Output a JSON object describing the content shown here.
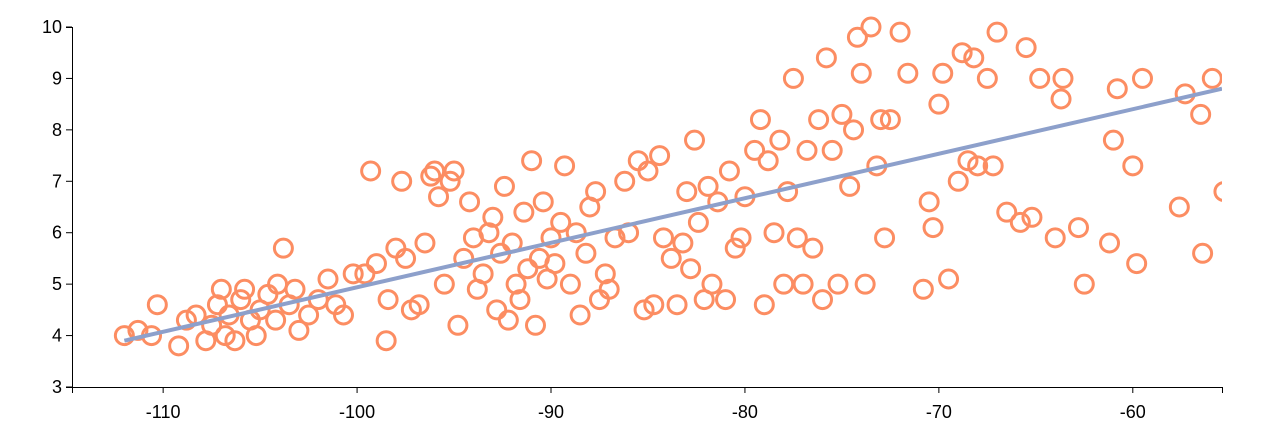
{
  "chart_data": {
    "type": "scatter",
    "xlim": [
      -114.7,
      -55.4
    ],
    "ylim": [
      3,
      10
    ],
    "xticks": [
      -110,
      -100,
      -90,
      -80,
      -70,
      -60
    ],
    "yticks": [
      3,
      4,
      5,
      6,
      7,
      8,
      9,
      10
    ],
    "series": [
      {
        "type": "scatter",
        "color": "#fc8d62",
        "x": [
          -112,
          -111.3,
          -110.6,
          -110.3,
          -109.2,
          -108.8,
          -108.3,
          -107.8,
          -107.5,
          -107.2,
          -107,
          -106.8,
          -106.6,
          -106.3,
          -106,
          -105.8,
          -105.5,
          -105.2,
          -105,
          -104.6,
          -104.2,
          -104.1,
          -103.8,
          -103.5,
          -103.2,
          -103,
          -102.5,
          -102,
          -101.5,
          -101.1,
          -100.7,
          -100.2,
          -99.6,
          -99.3,
          -99.0,
          -98.5,
          -98.4,
          -98.0,
          -97.7,
          -97.5,
          -97.2,
          -96.8,
          -96.5,
          -96.2,
          -96,
          -95.8,
          -95.5,
          -95.2,
          -95,
          -94.8,
          -94.5,
          -94.2,
          -94,
          -93.8,
          -93.5,
          -93.2,
          -93,
          -92.8,
          -92.6,
          -92.4,
          -92.2,
          -92,
          -91.8,
          -91.6,
          -91.4,
          -91.2,
          -91,
          -90.8,
          -90.6,
          -90.4,
          -90.2,
          -90,
          -89.8,
          -89.5,
          -89.3,
          -89.0,
          -88.7,
          -88.5,
          -88.2,
          -88,
          -87.7,
          -87.5,
          -87.2,
          -87,
          -86.7,
          -86.2,
          -86,
          -85.5,
          -85.2,
          -85,
          -84.7,
          -84.4,
          -84.2,
          -83.8,
          -83.5,
          -83.2,
          -83,
          -82.8,
          -82.6,
          -82.4,
          -82.1,
          -81.9,
          -81.7,
          -81.4,
          -81.0,
          -80.8,
          -80.5,
          -80.2,
          -80,
          -79.5,
          -79.2,
          -79,
          -78.8,
          -78.5,
          -78.2,
          -78,
          -77.8,
          -77.5,
          -77.3,
          -77,
          -76.8,
          -76.5,
          -76.2,
          -76,
          -75.8,
          -75.5,
          -75.2,
          -75,
          -74.6,
          -74.4,
          -74.2,
          -74,
          -73.8,
          -73.5,
          -73.2,
          -73,
          -72.8,
          -72.5,
          -72,
          -71.6,
          -70.8,
          -70.5,
          -70.3,
          -70,
          -69.8,
          -69.5,
          -69,
          -68.8,
          -68.5,
          -68.2,
          -68,
          -67.5,
          -67.2,
          -67,
          -66.5,
          -65.8,
          -65.5,
          -65.2,
          -64.8,
          -64,
          -63.7,
          -63.6,
          -62.8,
          -62.5,
          -61.2,
          -61,
          -60.8,
          -60,
          -59.8,
          -59.5,
          -57.6,
          -57.3,
          -56.5,
          -56.4,
          -55.9,
          -55.3
        ],
        "values": [
          4.0,
          4.1,
          4.0,
          4.6,
          3.8,
          4.3,
          4.4,
          3.9,
          4.2,
          4.6,
          4.9,
          4.0,
          4.4,
          3.9,
          4.7,
          4.9,
          4.3,
          4.0,
          4.5,
          4.8,
          4.3,
          5.0,
          5.7,
          4.6,
          4.9,
          4.1,
          4.4,
          4.7,
          5.1,
          4.6,
          4.4,
          5.2,
          5.2,
          7.2,
          5.4,
          3.9,
          4.7,
          5.7,
          7.0,
          5.5,
          4.5,
          4.6,
          5.8,
          7.1,
          7.2,
          6.7,
          5.0,
          7.0,
          7.2,
          4.2,
          5.5,
          6.6,
          5.9,
          4.9,
          5.2,
          6.0,
          6.3,
          4.5,
          5.6,
          6.9,
          4.3,
          5.8,
          5.0,
          4.7,
          6.4,
          5.3,
          7.4,
          4.2,
          5.5,
          6.6,
          5.1,
          5.9,
          5.4,
          6.2,
          7.3,
          5.0,
          6.0,
          4.4,
          5.6,
          6.5,
          6.8,
          4.7,
          5.2,
          4.9,
          5.9,
          7.0,
          6.0,
          7.4,
          4.5,
          7.2,
          4.6,
          7.5,
          5.9,
          5.5,
          4.6,
          5.8,
          6.8,
          5.3,
          7.8,
          6.2,
          4.7,
          6.9,
          5.0,
          6.6,
          4.7,
          7.2,
          5.7,
          5.9,
          6.7,
          7.6,
          8.2,
          4.6,
          7.4,
          6.0,
          7.8,
          5.0,
          6.8,
          9.0,
          5.9,
          5.0,
          7.6,
          5.7,
          8.2,
          4.7,
          9.4,
          7.6,
          5.0,
          8.3,
          6.9,
          8.0,
          9.8,
          9.1,
          5.0,
          10.0,
          7.3,
          8.2,
          5.9,
          8.2,
          9.9,
          9.1,
          4.9,
          6.6,
          6.1,
          8.5,
          9.1,
          5.1,
          7.0,
          9.5,
          7.4,
          9.4,
          7.3,
          9.0,
          7.3,
          9.9,
          6.4,
          6.2,
          9.6,
          6.3,
          9.0,
          5.9,
          8.6,
          9.0,
          6.1,
          5.0,
          5.8,
          7.8,
          8.8,
          7.3,
          5.4,
          9.0,
          6.5,
          8.7,
          8.3,
          5.6,
          9.0,
          6.8
        ]
      },
      {
        "type": "line",
        "color": "#8da0cb",
        "x": [
          -112,
          -55.4
        ],
        "values": [
          3.9,
          8.8
        ]
      }
    ]
  }
}
